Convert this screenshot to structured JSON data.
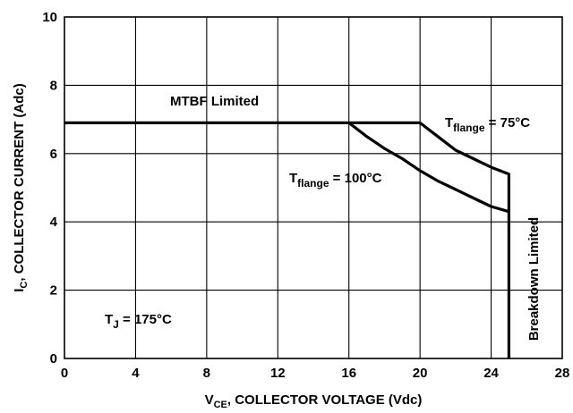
{
  "chart_data": {
    "type": "line",
    "xlabel": {
      "main": "V",
      "sub": "CE",
      "rest": ", COLLECTOR VOLTAGE (Vdc)"
    },
    "ylabel": {
      "main": "I",
      "sub": "C",
      "rest": ", COLLECTOR CURRENT (Adc)"
    },
    "xlim": [
      0,
      28
    ],
    "ylim": [
      0,
      10
    ],
    "xticks": [
      0,
      4,
      8,
      12,
      16,
      20,
      24,
      28
    ],
    "yticks": [
      0,
      2,
      4,
      6,
      8,
      10
    ],
    "grid": true,
    "series": [
      {
        "name": "MTBF Limited",
        "x": [
          0,
          20
        ],
        "y": [
          6.9,
          6.9
        ]
      },
      {
        "name": "T_flange = 75°C",
        "x": [
          20,
          21,
          22,
          23,
          24,
          25,
          25
        ],
        "y": [
          6.9,
          6.5,
          6.1,
          5.85,
          5.6,
          5.4,
          0
        ]
      },
      {
        "name": "T_flange = 100°C",
        "x": [
          16,
          17,
          18,
          19,
          20,
          21,
          22,
          23,
          24,
          25
        ],
        "y": [
          6.9,
          6.5,
          6.15,
          5.85,
          5.5,
          5.2,
          4.95,
          4.7,
          4.45,
          4.3
        ]
      }
    ],
    "annotations": {
      "mtbf": "MTBF Limited",
      "t75": {
        "main": "T",
        "sub": "flange",
        "rest": " = 75°C"
      },
      "t100": {
        "main": "T",
        "sub": "flange",
        "rest": " = 100°C"
      },
      "tj": {
        "main": "T",
        "sub": "J",
        "rest": " = 175°C"
      },
      "breakdown": "Breakdown Limited"
    }
  }
}
